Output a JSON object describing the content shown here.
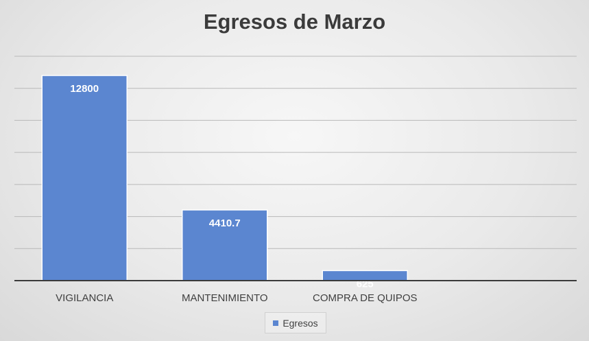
{
  "chart_data": {
    "type": "bar",
    "title": "Egresos de Marzo",
    "categories": [
      "VIGILANCIA",
      "MANTENIMIENTO",
      "COMPRA DE QUIPOS"
    ],
    "series": [
      {
        "name": "Egresos",
        "values": [
          12800,
          4410.7,
          625
        ],
        "color": "#5b86d0"
      }
    ],
    "data_labels": [
      "12800",
      "4410.7",
      "625"
    ],
    "ylim": [
      0,
      14000
    ],
    "grid": true,
    "legend": "bottom",
    "xlabel": "",
    "ylabel": ""
  }
}
